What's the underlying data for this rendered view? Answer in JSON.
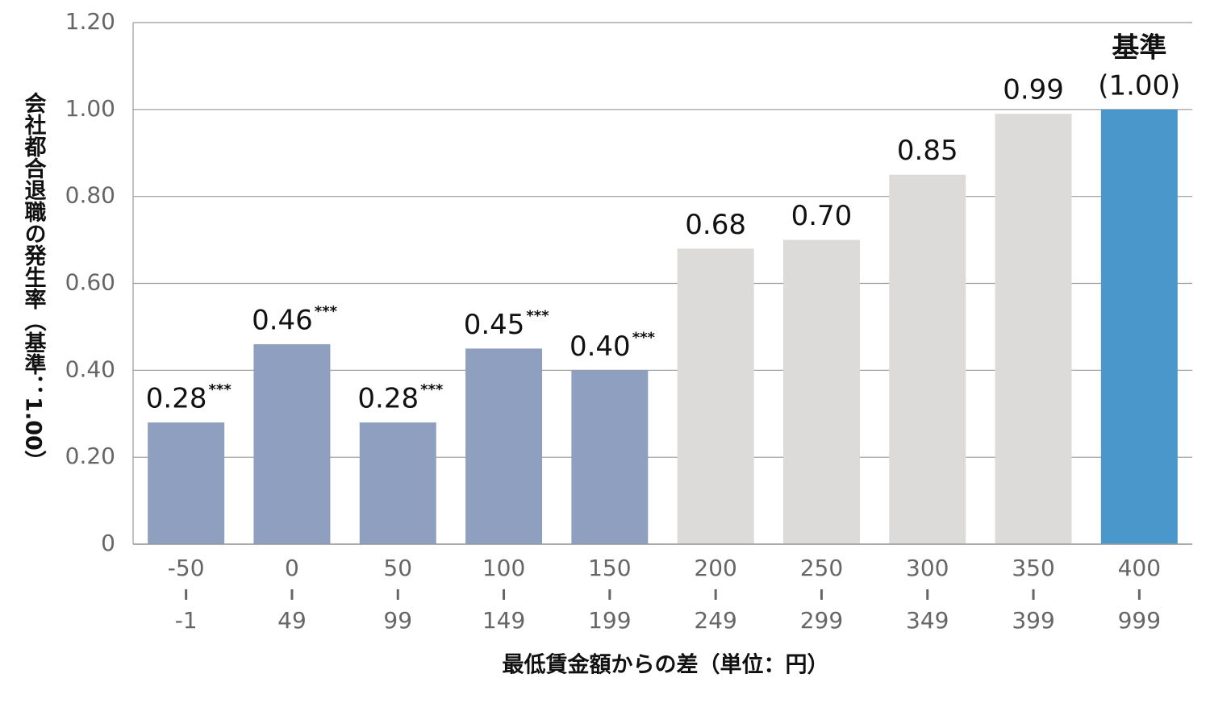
{
  "chart_data": {
    "type": "bar",
    "y_axis_label": "会社都合退職の発生率（基準：1.00）",
    "x_axis_label": "最低賃金額からの差（単位：円）",
    "categories": [
      [
        "-50",
        "-1"
      ],
      [
        "0",
        "49"
      ],
      [
        "50",
        "99"
      ],
      [
        "100",
        "149"
      ],
      [
        "150",
        "199"
      ],
      [
        "200",
        "249"
      ],
      [
        "250",
        "299"
      ],
      [
        "300",
        "349"
      ],
      [
        "350",
        "399"
      ],
      [
        "400",
        "999"
      ]
    ],
    "values": [
      0.28,
      0.46,
      0.28,
      0.45,
      0.4,
      0.68,
      0.7,
      0.85,
      0.99,
      1.0
    ],
    "value_labels": [
      "0.28",
      "0.46",
      "0.28",
      "0.45",
      "0.40",
      "0.68",
      "0.70",
      "0.85",
      "0.99",
      "(1.00)"
    ],
    "significance": [
      "***",
      "***",
      "***",
      "***",
      "***",
      null,
      null,
      null,
      null,
      null
    ],
    "reference_label": "基準",
    "colors": [
      "#8f9fc0",
      "#8f9fc0",
      "#8f9fc0",
      "#8f9fc0",
      "#8f9fc0",
      "#dcdbd9",
      "#dcdbd9",
      "#dcdbd9",
      "#dcdbd9",
      "#4a98cb"
    ],
    "ylim": [
      0,
      1.2
    ],
    "yticks": [
      0,
      {
        "value": 0.2,
        "label": "0.20"
      },
      {
        "value": 0.4,
        "label": "0.40"
      },
      {
        "value": 0.6,
        "label": "0.60"
      },
      {
        "value": 0.8,
        "label": "0.80"
      },
      {
        "value": 1.0,
        "label": "1.00"
      },
      {
        "value": 1.2,
        "label": "1.20"
      }
    ],
    "grid": true
  }
}
